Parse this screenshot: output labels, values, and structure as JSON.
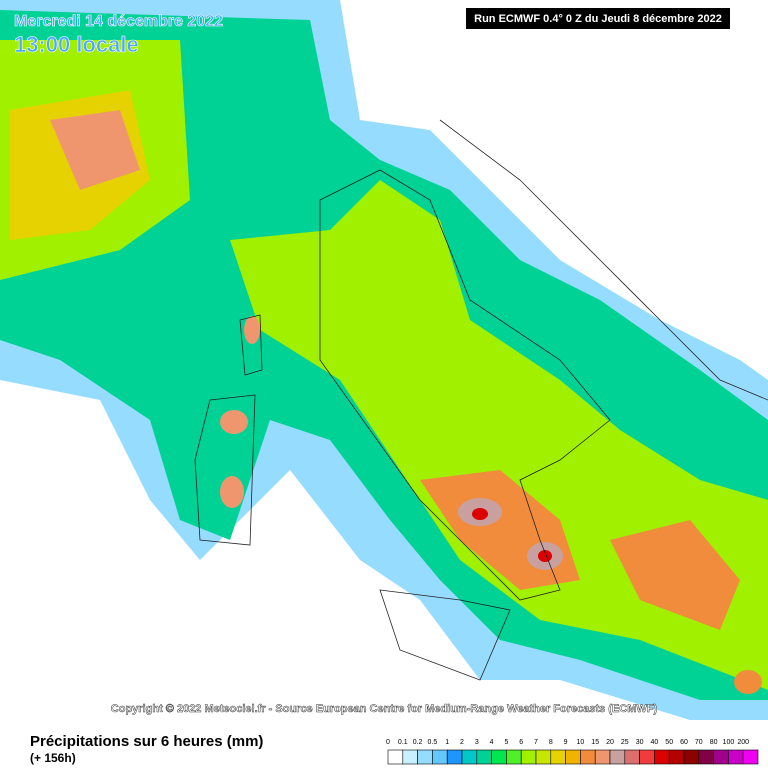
{
  "header": {
    "date": "Mercredi 14 décembre 2022",
    "time": "13:00 locale",
    "run": "Run ECMWF 0.4° 0 Z du Jeudi 8 décembre 2022"
  },
  "copyright": "Copyright © 2022 Meteociel.fr - Source European Centre for Medium-Range Weather Forecasts (ECMWF)",
  "legend": {
    "title": "Précipitations sur 6 heures (mm)",
    "lead": "(+ 156h)",
    "labels": [
      "0",
      "0.1",
      "0.2",
      "0.5",
      "1",
      "2",
      "3",
      "4",
      "5",
      "6",
      "7",
      "8",
      "9",
      "10",
      "15",
      "20",
      "25",
      "30",
      "40",
      "50",
      "60",
      "70",
      "80",
      "100",
      "200"
    ],
    "colors": [
      "#ffffff",
      "#c8f0ff",
      "#96dcff",
      "#64c8ff",
      "#1e96ff",
      "#00c8c8",
      "#00d296",
      "#00e650",
      "#50f028",
      "#a0f000",
      "#c8e600",
      "#e6d200",
      "#f0b400",
      "#f08c3c",
      "#f0966e",
      "#c8a0a0",
      "#dc6e6e",
      "#f03c3c",
      "#dc0000",
      "#b40000",
      "#8c0000",
      "#820046",
      "#a0008c",
      "#c800c8",
      "#f000f0"
    ]
  }
}
